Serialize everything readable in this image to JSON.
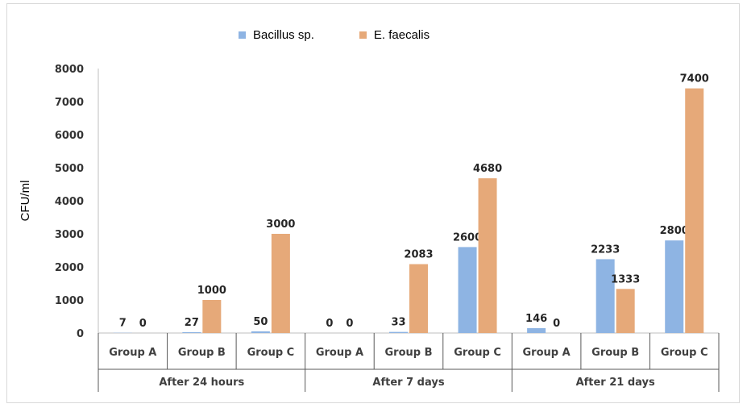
{
  "chart_data": {
    "type": "bar",
    "ylabel": "CFU/ml",
    "ylim": [
      0,
      8000
    ],
    "yticks": [
      0,
      1000,
      2000,
      3000,
      4000,
      5000,
      6000,
      7000,
      8000
    ],
    "groups": [
      {
        "label": "After 24 hours",
        "categories": [
          "Group A",
          "Group B",
          "Group C"
        ]
      },
      {
        "label": "After 7 days",
        "categories": [
          "Group A",
          "Group B",
          "Group C"
        ]
      },
      {
        "label": "After 21 days",
        "categories": [
          "Group A",
          "Group B",
          "Group C"
        ]
      }
    ],
    "series": [
      {
        "name": "Bacillus sp.",
        "color": "#8eb4e3",
        "values": [
          7,
          27,
          50,
          0,
          33,
          2600,
          146,
          2233,
          2800
        ]
      },
      {
        "name": "E. faecalis",
        "color": "#e6a979",
        "values": [
          0,
          1000,
          3000,
          0,
          2083,
          4680,
          0,
          1333,
          7400
        ]
      }
    ],
    "legend_position": "top"
  }
}
